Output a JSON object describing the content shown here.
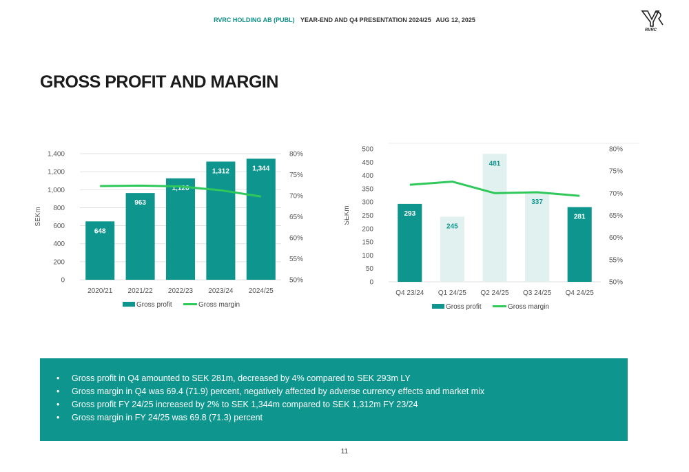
{
  "header": {
    "company": "RVRC HOLDING AB (PUBL)",
    "presentation": "YEAR-END AND Q4 PRESENTATION 2024/25",
    "date": "AUG 12, 2025"
  },
  "logo": {
    "text": "RVRC",
    "icon": "rvrc-logo-icon"
  },
  "title": "GROSS PROFIT AND MARGIN",
  "colors": {
    "bar": "#0e968e",
    "bar_light": "#e1f1ef",
    "line": "#2fc85a",
    "bullet_bg": "#0e968e"
  },
  "chart_data": [
    {
      "type": "bar",
      "categories": [
        "2020/21",
        "2021/22",
        "2022/23",
        "2023/24",
        "2024/25"
      ],
      "series": [
        {
          "name": "Gross profit",
          "values": [
            648,
            963,
            1126,
            1312,
            1344
          ],
          "axis": "left"
        },
        {
          "name": "Gross margin",
          "type": "line",
          "values": [
            72.3,
            72.4,
            72.2,
            71.3,
            69.8
          ],
          "axis": "right"
        }
      ],
      "data_labels": [
        "648",
        "963",
        "1,126",
        "1,312",
        "1,344"
      ],
      "ylabel": "SEKm",
      "ylim": [
        0,
        1400
      ],
      "yticks": [
        "0",
        "200",
        "400",
        "600",
        "800",
        "1,000",
        "1,200",
        "1,400"
      ],
      "y2lim": [
        50,
        80
      ],
      "y2ticks": [
        "50%",
        "55%",
        "60%",
        "65%",
        "70%",
        "75%",
        "80%"
      ],
      "grid": true,
      "legend": "bottom"
    },
    {
      "type": "bar",
      "categories": [
        "Q4 23/24",
        "Q1 24/25",
        "Q2 24/25",
        "Q3 24/25",
        "Q4 24/25"
      ],
      "series": [
        {
          "name": "Gross profit",
          "values": [
            293,
            245,
            481,
            337,
            281
          ],
          "axis": "left"
        },
        {
          "name": "Gross margin",
          "type": "line",
          "values": [
            71.9,
            72.6,
            70.0,
            70.2,
            69.4
          ],
          "axis": "right"
        }
      ],
      "data_labels": [
        "293",
        "245",
        "481",
        "337",
        "281"
      ],
      "highlighted": [
        true,
        false,
        false,
        false,
        true
      ],
      "ylabel": "SEKm",
      "ylim": [
        0,
        500
      ],
      "yticks": [
        "0",
        "50",
        "100",
        "150",
        "200",
        "250",
        "300",
        "350",
        "400",
        "450",
        "500"
      ],
      "y2lim": [
        50,
        80
      ],
      "y2ticks": [
        "50%",
        "55%",
        "60%",
        "65%",
        "70%",
        "75%",
        "80%"
      ],
      "grid": false,
      "legend": "bottom"
    }
  ],
  "bullets": [
    "Gross profit in Q4 amounted to SEK 281m, decreased by 4% compared to SEK 293m LY",
    "Gross margin in Q4 was 69.4 (71.9) percent, negatively affected by adverse currency effects and market mix",
    "Gross profit FY 24/25 increased by 2% to SEK 1,344m compared to SEK 1,312m FY 23/24",
    "Gross margin in FY 24/25 was 69.8 (71.3) percent"
  ],
  "page_number": "11"
}
